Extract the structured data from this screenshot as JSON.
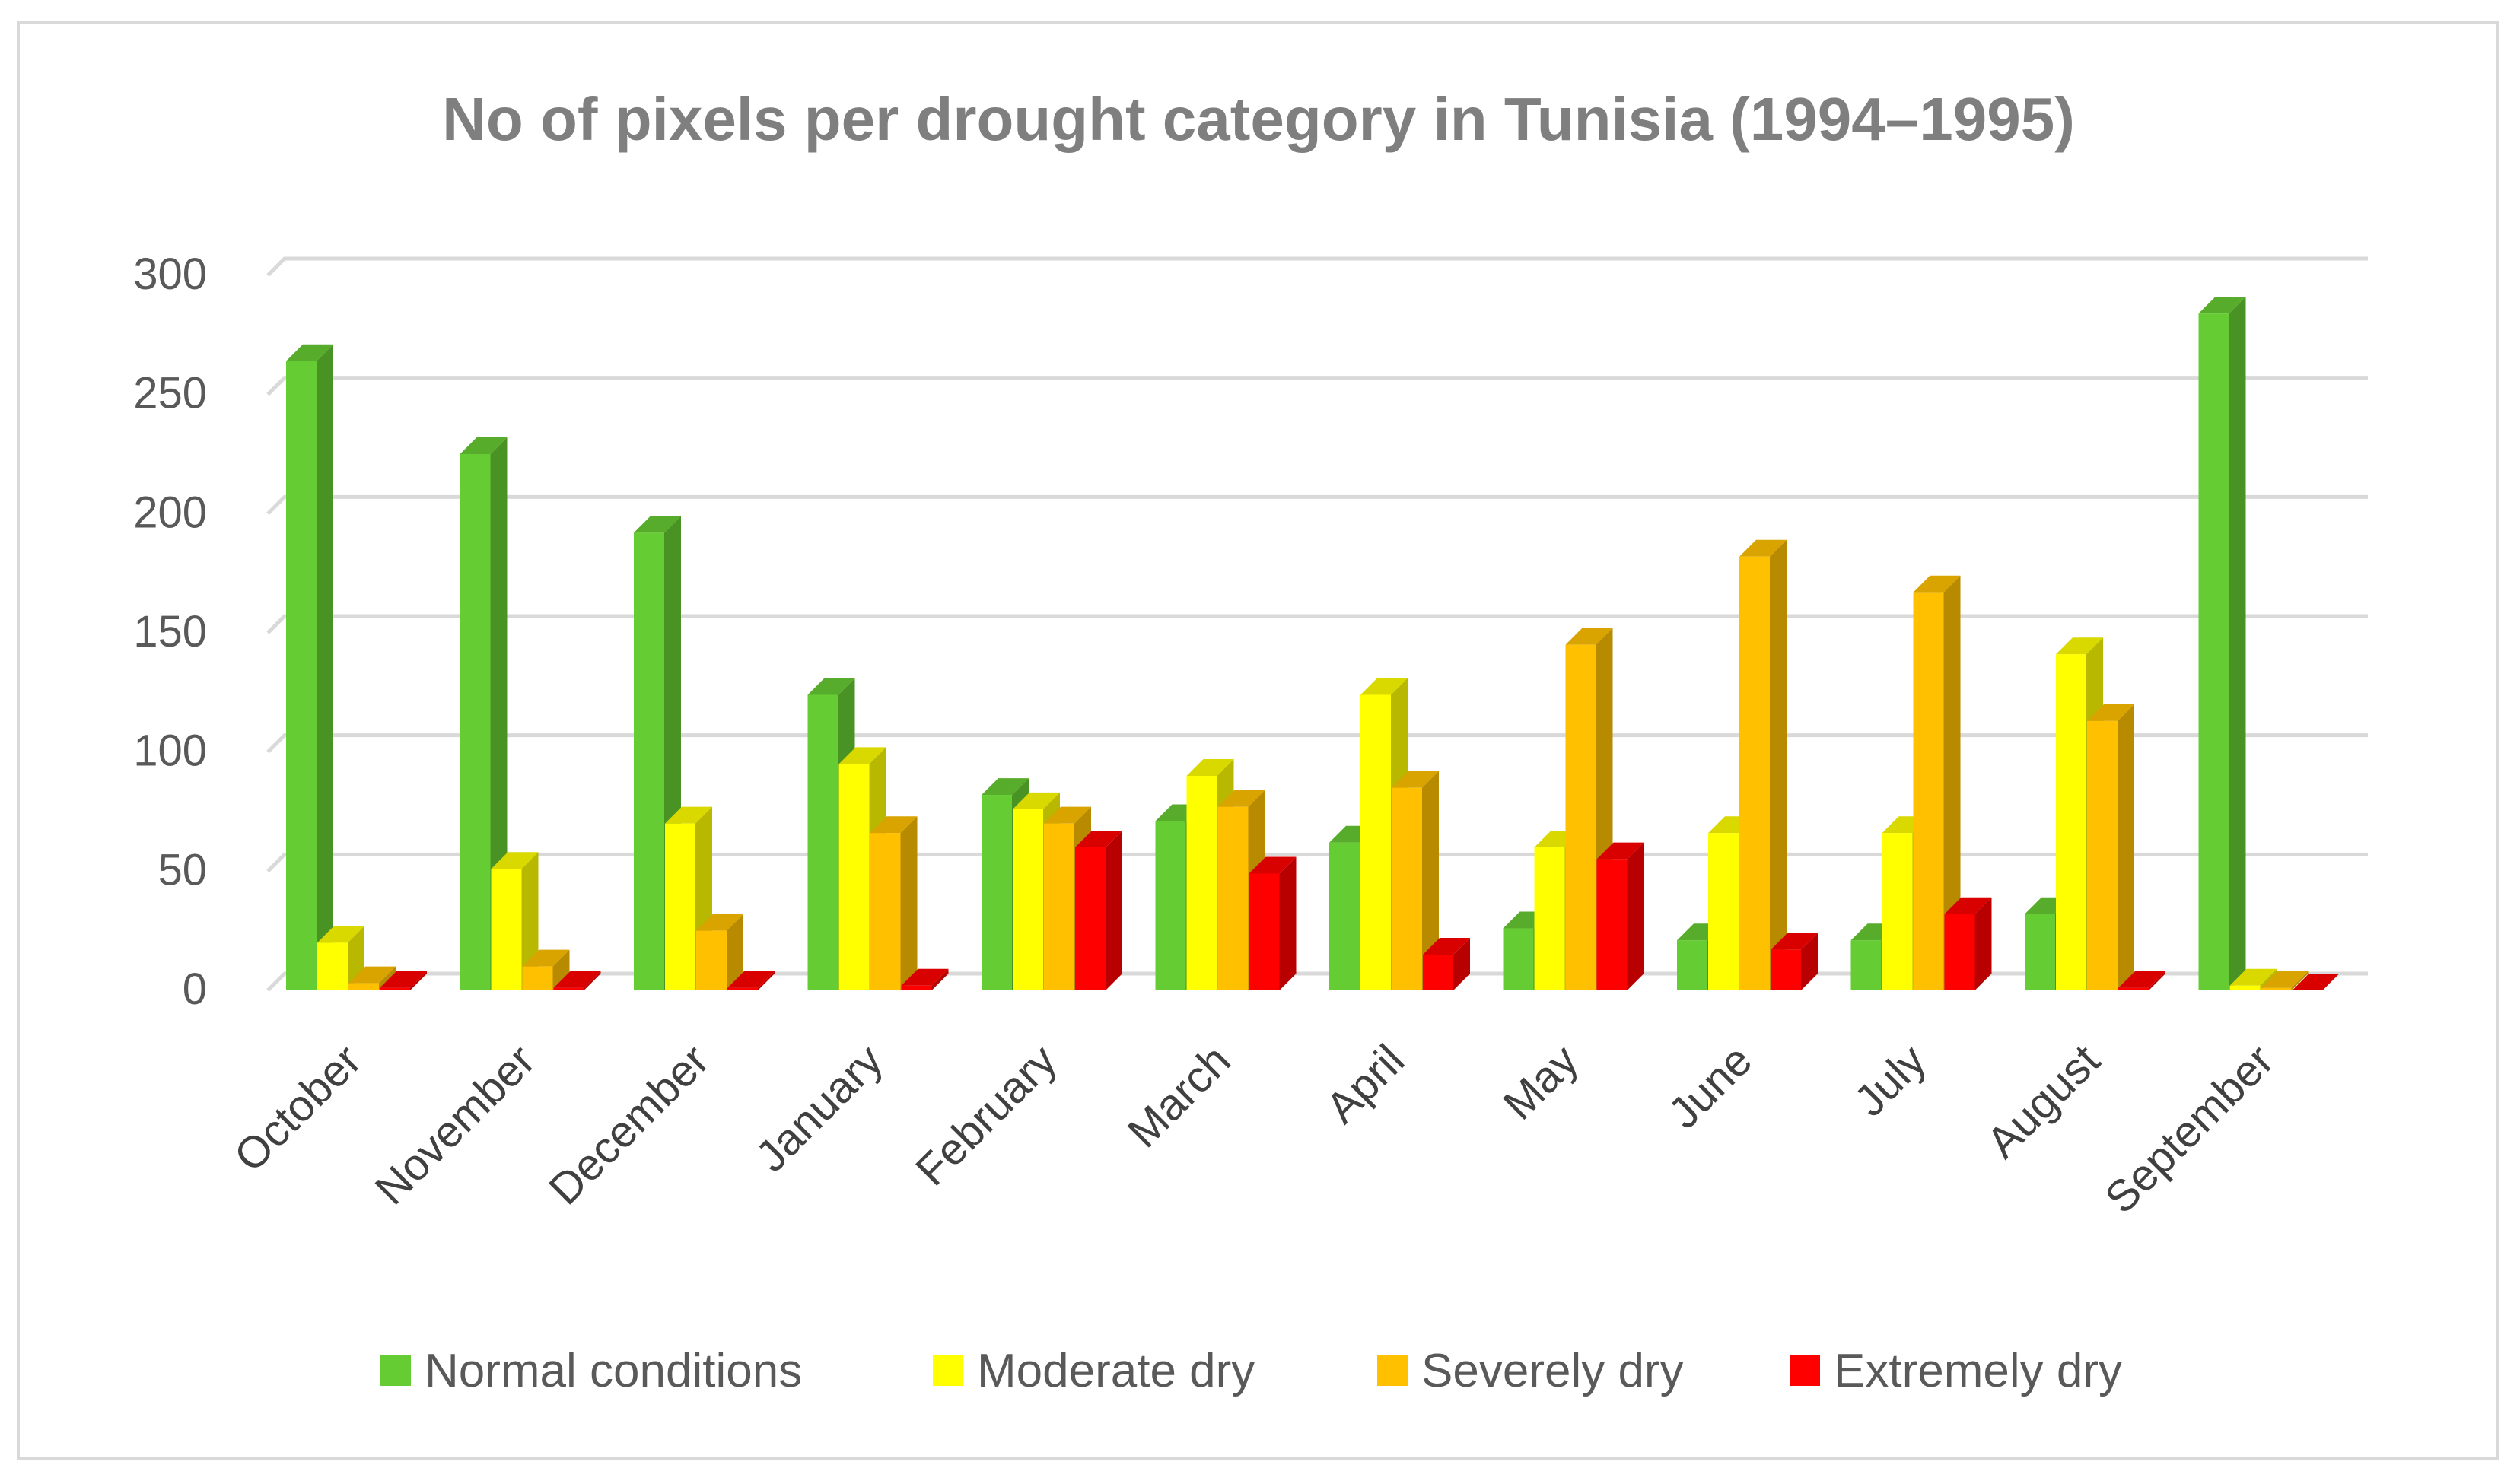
{
  "chart_data": {
    "type": "bar",
    "title": "No of pixels per drought category in Tunisia (1994–1995)",
    "xlabel": "",
    "ylabel": "",
    "ylim": [
      0,
      300
    ],
    "yticks": [
      0,
      50,
      100,
      150,
      200,
      250,
      300
    ],
    "grid": true,
    "legend_position": "bottom",
    "categories": [
      "October",
      "November",
      "December",
      "January",
      "February",
      "March",
      "April",
      "May",
      "June",
      "July",
      "August",
      "September"
    ],
    "series": [
      {
        "name": "Normal conditions",
        "color": "#66cc33",
        "values": [
          264,
          225,
          192,
          124,
          82,
          71,
          62,
          26,
          21,
          21,
          32,
          284
        ]
      },
      {
        "name": "Moderate dry",
        "color": "#ffff00",
        "values": [
          20,
          51,
          70,
          95,
          76,
          90,
          124,
          60,
          66,
          66,
          141,
          2
        ]
      },
      {
        "name": "Severely dry",
        "color": "#ffc000",
        "values": [
          3,
          10,
          25,
          66,
          70,
          77,
          85,
          145,
          182,
          167,
          113,
          1
        ]
      },
      {
        "name": "Extremely dry",
        "color": "#ff0000",
        "values": [
          1,
          1,
          1,
          2,
          60,
          49,
          15,
          55,
          17,
          32,
          1,
          0
        ]
      }
    ]
  }
}
